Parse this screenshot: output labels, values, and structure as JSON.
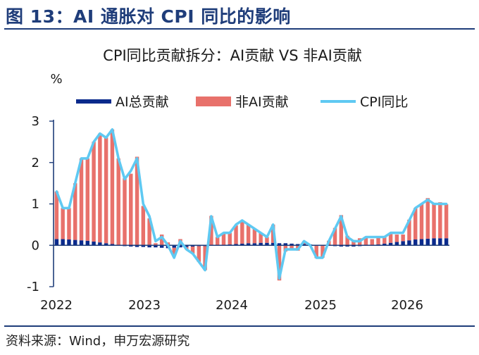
{
  "figure_title": "图 13：AI 通胀对 CPI 同比的影响",
  "source_note": "资料来源：Wind，申万宏源研究",
  "chart_data": {
    "type": "bar",
    "title": "CPI同比贡献拆分：AI贡献 VS 非AI贡献",
    "ylabel": "%",
    "ylim": [
      -1,
      3
    ],
    "yticks": [
      "3",
      "2",
      "1",
      "0",
      "-1"
    ],
    "x_tick_labels": [
      "2022",
      "2023",
      "2024",
      "2025",
      "2026"
    ],
    "legend_position": "top",
    "colors": {
      "ai": "#0a2a8c",
      "non_ai": "#e8716b",
      "cpi": "#5fc9f2",
      "axis": "#1f3d7a"
    },
    "series": [
      {
        "name": "AI总贡献",
        "kind": "bar",
        "values": [
          0.15,
          0.15,
          0.14,
          0.13,
          0.12,
          0.11,
          0.09,
          0.07,
          0.05,
          0.03,
          0.0,
          -0.02,
          -0.03,
          -0.04,
          -0.04,
          -0.05,
          -0.05,
          -0.06,
          -0.07,
          -0.06,
          -0.05,
          -0.04,
          -0.03,
          -0.02,
          -0.02,
          -0.01,
          0.0,
          0.01,
          0.02,
          0.03,
          0.04,
          0.05,
          0.05,
          0.06,
          0.06,
          0.06,
          0.05,
          0.05,
          0.04,
          0.03,
          0.03,
          0.02,
          0.01,
          0.0,
          -0.01,
          -0.02,
          -0.03,
          -0.03,
          -0.03,
          -0.02,
          -0.01,
          0.0,
          0.02,
          0.04,
          0.06,
          0.08,
          0.1,
          0.12,
          0.14,
          0.15,
          0.16,
          0.17,
          0.17,
          0.17
        ]
      },
      {
        "name": "非AI贡献",
        "kind": "bar",
        "values": [
          1.15,
          0.75,
          0.76,
          1.37,
          1.98,
          1.99,
          2.41,
          2.63,
          2.55,
          2.77,
          2.1,
          1.62,
          1.73,
          2.14,
          0.95,
          0.65,
          0.05,
          0.26,
          0.07,
          -0.19,
          0.15,
          -0.06,
          -0.17,
          -0.38,
          -0.58,
          0.71,
          0.2,
          0.29,
          0.28,
          0.45,
          0.56,
          0.45,
          0.35,
          0.24,
          0.14,
          0.44,
          -0.85,
          -0.15,
          -0.09,
          -0.13,
          0.07,
          -0.02,
          -0.31,
          -0.3,
          0.11,
          0.42,
          0.73,
          0.23,
          0.13,
          0.17,
          0.21,
          0.15,
          0.2,
          0.18,
          0.21,
          0.18,
          0.16,
          0.5,
          0.76,
          0.85,
          0.98,
          0.83,
          0.87,
          0.82
        ]
      },
      {
        "name": "CPI同比",
        "kind": "line",
        "values": [
          1.3,
          0.9,
          0.9,
          1.5,
          2.1,
          2.1,
          2.5,
          2.7,
          2.6,
          2.8,
          2.1,
          1.6,
          1.8,
          2.1,
          1.0,
          0.7,
          0.1,
          0.2,
          0.0,
          -0.3,
          0.1,
          -0.1,
          -0.2,
          -0.4,
          -0.6,
          0.7,
          0.2,
          0.3,
          0.3,
          0.5,
          0.6,
          0.5,
          0.4,
          0.3,
          0.2,
          0.5,
          -0.8,
          -0.1,
          -0.1,
          -0.1,
          0.1,
          0.0,
          -0.3,
          -0.3,
          0.1,
          0.4,
          0.7,
          0.2,
          0.1,
          0.1,
          0.2,
          0.2,
          0.2,
          0.2,
          0.3,
          0.3,
          0.3,
          0.6,
          0.9,
          1.0,
          1.1,
          1.0,
          1.0,
          1.0
        ]
      }
    ],
    "x": [
      "2022-01",
      "2022-02",
      "2022-03",
      "2022-04",
      "2022-05",
      "2022-06",
      "2022-07",
      "2022-08",
      "2022-09",
      "2022-10",
      "2022-11",
      "2022-12",
      "2023-01",
      "2023-02",
      "2023-03",
      "2023-04",
      "2023-05",
      "2023-06",
      "2023-07",
      "2023-08",
      "2023-09",
      "2023-10",
      "2023-11",
      "2023-12",
      "2024-01",
      "2024-02",
      "2024-03",
      "2024-04",
      "2024-05",
      "2024-06",
      "2024-07",
      "2024-08",
      "2024-09",
      "2024-10",
      "2024-11",
      "2024-12",
      "2025-02",
      "2025-03",
      "2025-04",
      "2025-05",
      "2025-06",
      "2025-07",
      "2025-08",
      "2025-09",
      "2025-10",
      "2025-11",
      "2025-12",
      "2026-01",
      "2026-02",
      "2026-03",
      "2026-04",
      "2026-05",
      "2026-06",
      "2026-07",
      "2026-08",
      "2026-09",
      "2026-10",
      "2026-11",
      "2026-12",
      "2027-01",
      "2027-02",
      "2027-03",
      "2027-04",
      "2027-05"
    ]
  }
}
